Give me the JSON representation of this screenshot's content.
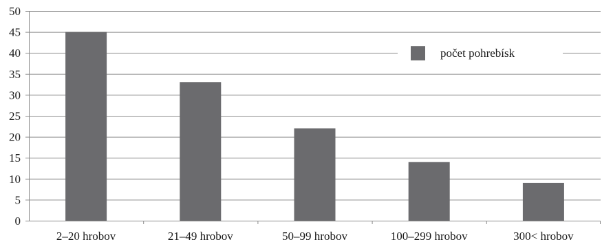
{
  "chart_data": {
    "type": "bar",
    "categories": [
      "2–20 hrobov",
      "21–49 hrobov",
      "50–99 hrobov",
      "100–299 hrobov",
      "300< hrobov"
    ],
    "series": [
      {
        "name": "počet pohrebísk",
        "values": [
          45,
          33,
          22,
          14,
          9
        ],
        "color": "#6b6b6e"
      }
    ],
    "title": "",
    "xlabel": "",
    "ylabel": "",
    "ylim": [
      0,
      50
    ],
    "yticks": [
      0,
      5,
      10,
      15,
      20,
      25,
      30,
      35,
      40,
      45,
      50
    ],
    "grid": true,
    "legend_position": "top-right",
    "gridline_color": "#8c8c8c",
    "axis_color": "#8c8c8c"
  }
}
